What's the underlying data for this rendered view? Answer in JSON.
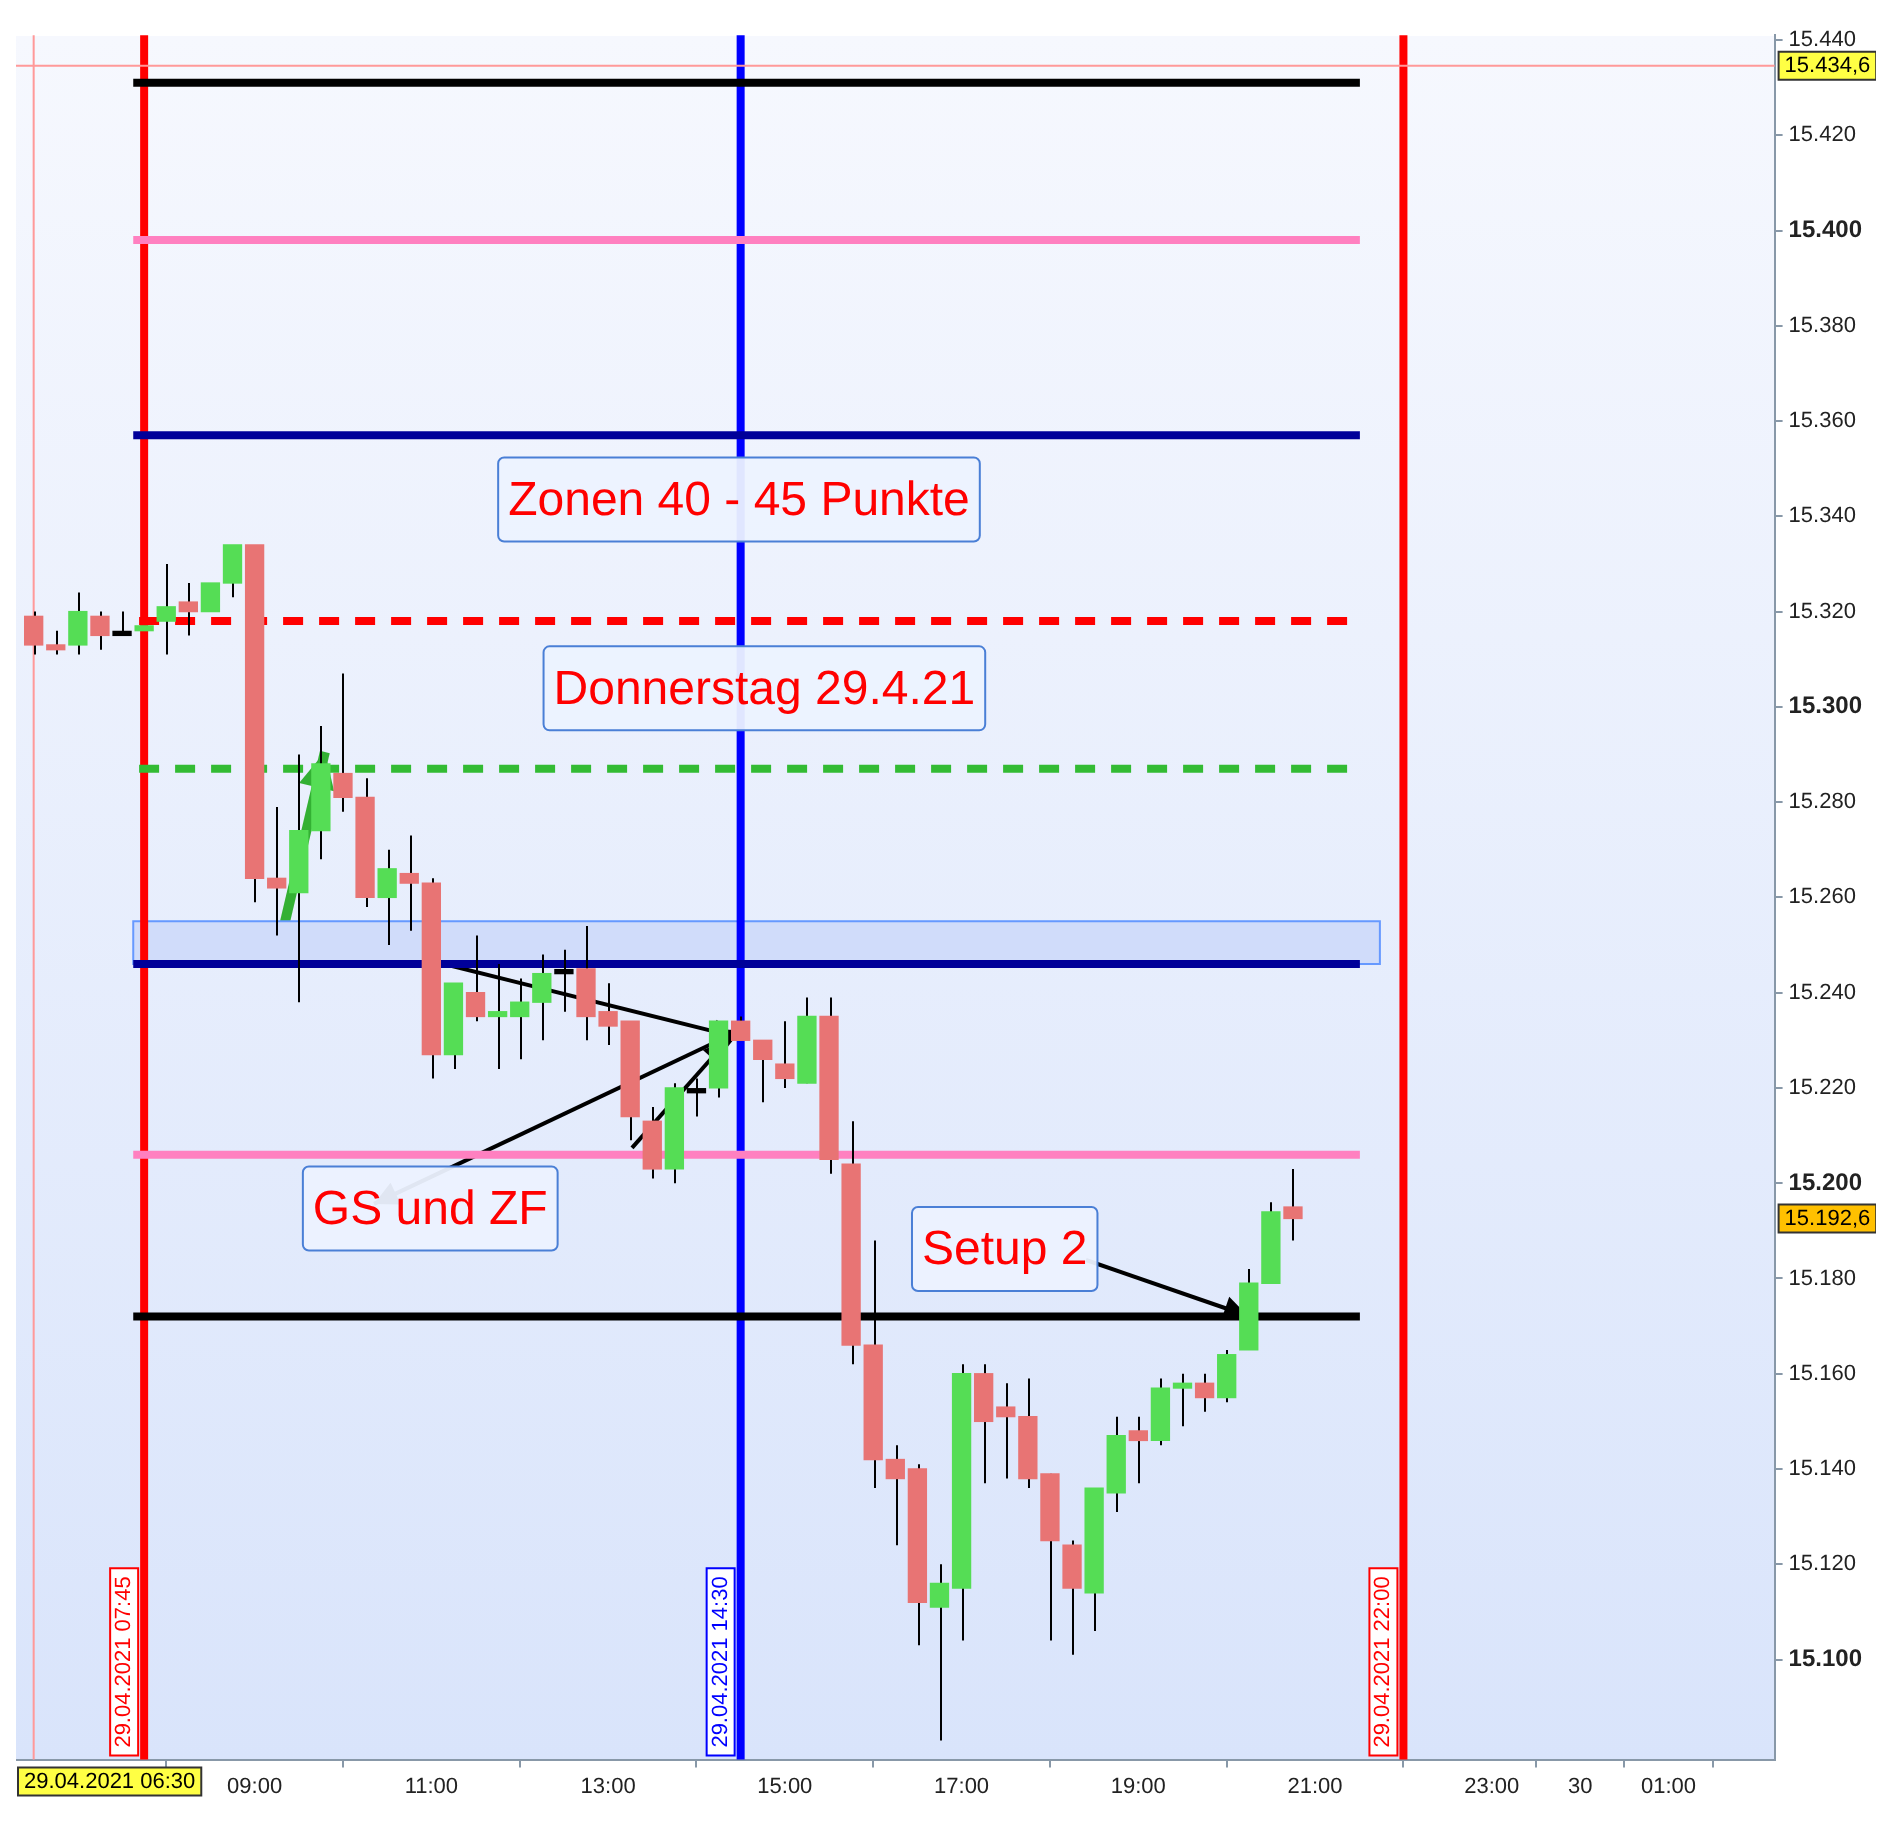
{
  "chart_data": {
    "type": "candlestick",
    "x": [
      "2021-04-29T06:30",
      "2021-04-29T06:45",
      "2021-04-29T07:00",
      "2021-04-29T07:15",
      "2021-04-29T07:30",
      "2021-04-29T07:45",
      "2021-04-29T08:00",
      "2021-04-29T08:15",
      "2021-04-29T08:30",
      "2021-04-29T08:45",
      "2021-04-29T09:00",
      "2021-04-29T09:15",
      "2021-04-29T09:30",
      "2021-04-29T09:45",
      "2021-04-29T10:00",
      "2021-04-29T10:15",
      "2021-04-29T10:30",
      "2021-04-29T10:45",
      "2021-04-29T11:00",
      "2021-04-29T11:15",
      "2021-04-29T11:30",
      "2021-04-29T11:45",
      "2021-04-29T12:00",
      "2021-04-29T12:15",
      "2021-04-29T12:30",
      "2021-04-29T12:45",
      "2021-04-29T13:00",
      "2021-04-29T13:15",
      "2021-04-29T13:30",
      "2021-04-29T13:45",
      "2021-04-29T14:00",
      "2021-04-29T14:15",
      "2021-04-29T14:30",
      "2021-04-29T14:45",
      "2021-04-29T15:00",
      "2021-04-29T15:15",
      "2021-04-29T15:30",
      "2021-04-29T15:45",
      "2021-04-29T16:00",
      "2021-04-29T16:15",
      "2021-04-29T16:30",
      "2021-04-29T16:45",
      "2021-04-29T17:00",
      "2021-04-29T17:15",
      "2021-04-29T17:30",
      "2021-04-29T17:45",
      "2021-04-29T18:00",
      "2021-04-29T18:15",
      "2021-04-29T18:30",
      "2021-04-29T18:45",
      "2021-04-29T19:00",
      "2021-04-29T19:15",
      "2021-04-29T19:30",
      "2021-04-29T19:45",
      "2021-04-29T20:00",
      "2021-04-29T20:15",
      "2021-04-29T20:30",
      "2021-04-29T20:45"
    ],
    "ohlc": [
      [
        15319,
        15320,
        15311,
        15313
      ],
      [
        15313,
        15316,
        15311,
        15312
      ],
      [
        15313,
        15324,
        15311,
        15320
      ],
      [
        15319,
        15320,
        15312,
        15315
      ],
      [
        15315,
        15320,
        15315,
        15315
      ],
      [
        15316,
        15317,
        15316,
        15317
      ],
      [
        15318,
        15330,
        15311,
        15321
      ],
      [
        15322,
        15326,
        15315,
        15320
      ],
      [
        15320,
        15326,
        15320,
        15326
      ],
      [
        15326,
        15334,
        15323,
        15334
      ],
      [
        15334,
        15334,
        15259,
        15264
      ],
      [
        15264,
        15279,
        15252,
        15262
      ],
      [
        15261,
        15290,
        15238,
        15274
      ],
      [
        15274,
        15296,
        15268,
        15288
      ],
      [
        15286,
        15307,
        15278,
        15281
      ],
      [
        15281,
        15285,
        15258,
        15260
      ],
      [
        15260,
        15270,
        15250,
        15266
      ],
      [
        15265,
        15273,
        15253,
        15263
      ],
      [
        15263,
        15264,
        15222,
        15227
      ],
      [
        15227,
        15242,
        15224,
        15242
      ],
      [
        15240,
        15252,
        15234,
        15235
      ],
      [
        15235,
        15246,
        15224,
        15236
      ],
      [
        15235,
        15243,
        15226,
        15238
      ],
      [
        15238,
        15248,
        15230,
        15244
      ],
      [
        15244,
        15249,
        15236,
        15244
      ],
      [
        15245,
        15254,
        15230,
        15235
      ],
      [
        15236,
        15242,
        15229,
        15233
      ],
      [
        15234,
        15234,
        15209,
        15214
      ],
      [
        15213,
        15216,
        15201,
        15203
      ],
      [
        15203,
        15221,
        15200,
        15220
      ],
      [
        15219,
        15222,
        15214,
        15219
      ],
      [
        15220,
        15234,
        15218,
        15234
      ],
      [
        15234,
        15235,
        15230,
        15230
      ],
      [
        15230,
        15230,
        15217,
        15226
      ],
      [
        15225,
        15234,
        15220,
        15222
      ],
      [
        15221,
        15239,
        15221,
        15235
      ],
      [
        15235,
        15239,
        15202,
        15205
      ],
      [
        15204,
        15213,
        15162,
        15166
      ],
      [
        15166,
        15188,
        15136,
        15142
      ],
      [
        15142,
        15145,
        15124,
        15138
      ],
      [
        15140,
        15141,
        15103,
        15112
      ],
      [
        15111,
        15120,
        15083,
        15116
      ],
      [
        15115,
        15162,
        15104,
        15160
      ],
      [
        15160,
        15162,
        15137,
        15150
      ],
      [
        15153,
        15158,
        15138,
        15151
      ],
      [
        15151,
        15159,
        15136,
        15138
      ],
      [
        15139,
        15139,
        15104,
        15125
      ],
      [
        15124,
        15125,
        15101,
        15115
      ],
      [
        15114,
        15136,
        15106,
        15136
      ],
      [
        15135,
        15151,
        15131,
        15147
      ],
      [
        15148,
        15151,
        15137,
        15146
      ],
      [
        15146,
        15159,
        15145,
        15157
      ],
      [
        15157,
        15160,
        15149,
        15158
      ],
      [
        15158,
        15160,
        15152,
        15155
      ],
      [
        15155,
        15165,
        15154,
        15164
      ],
      [
        15165,
        15182,
        15165,
        15179
      ],
      [
        15179,
        15196,
        15179,
        15194
      ],
      [
        15195,
        15203,
        15188,
        15192.6
      ]
    ],
    "colors": [
      "#e87474",
      "#e87474",
      "#55dd55",
      "#e87474",
      "#000000",
      "#55dd55",
      "#55dd55",
      "#e87474",
      "#55dd55",
      "#55dd55",
      "#e87474",
      "#e87474",
      "#55dd55",
      "#55dd55",
      "#e87474",
      "#e87474",
      "#55dd55",
      "#e87474",
      "#e87474",
      "#55dd55",
      "#e87474",
      "#55dd55",
      "#55dd55",
      "#55dd55",
      "#000000",
      "#e87474",
      "#e87474",
      "#e87474",
      "#e87474",
      "#55dd55",
      "#000000",
      "#55dd55",
      "#e87474",
      "#e87474",
      "#e87474",
      "#55dd55",
      "#e87474",
      "#e87474",
      "#e87474",
      "#e87474",
      "#e87474",
      "#55dd55",
      "#55dd55",
      "#e87474",
      "#e87474",
      "#e87474",
      "#e87474",
      "#e87474",
      "#55dd55",
      "#55dd55",
      "#e87474",
      "#55dd55",
      "#55dd55",
      "#e87474",
      "#55dd55",
      "#55dd55",
      "#55dd55",
      "#e87474"
    ],
    "xlim": [
      "2021-04-29T06:18",
      "2021-04-30T02:12"
    ],
    "xticks": [
      {
        "value": "2021-04-29T09:00",
        "label": "09:00"
      },
      {
        "value": "2021-04-29T11:00",
        "label": "11:00"
      },
      {
        "value": "2021-04-29T13:00",
        "label": "13:00"
      },
      {
        "value": "2021-04-29T15:00",
        "label": "15:00"
      },
      {
        "value": "2021-04-29T17:00",
        "label": "17:00"
      },
      {
        "value": "2021-04-29T19:00",
        "label": "19:00"
      },
      {
        "value": "2021-04-29T21:00",
        "label": "21:00"
      },
      {
        "value": "2021-04-29T23:00",
        "label": "23:00"
      },
      {
        "value": "2021-04-30T00:00",
        "label": "30"
      },
      {
        "value": "2021-04-30T01:00",
        "label": "01:00"
      }
    ],
    "ylim": [
      15079,
      15441
    ],
    "yticks": [
      {
        "value": 15100,
        "label": "15.100"
      },
      {
        "value": 15120,
        "label": "15.120"
      },
      {
        "value": 15140,
        "label": "15.140"
      },
      {
        "value": 15160,
        "label": "15.160"
      },
      {
        "value": 15180,
        "label": "15.180"
      },
      {
        "value": 15200,
        "label": "15.200"
      },
      {
        "value": 15220,
        "label": "15.220"
      },
      {
        "value": 15240,
        "label": "15.240"
      },
      {
        "value": 15260,
        "label": "15.260"
      },
      {
        "value": 15280,
        "label": "15.280"
      },
      {
        "value": 15300,
        "label": "15.300"
      },
      {
        "value": 15320,
        "label": "15.320"
      },
      {
        "value": 15340,
        "label": "15.340"
      },
      {
        "value": 15360,
        "label": "15.360"
      },
      {
        "value": 15380,
        "label": "15.380"
      },
      {
        "value": 15400,
        "label": "15.400"
      },
      {
        "value": 15420,
        "label": "15.420"
      },
      {
        "value": 15440,
        "label": "15.440"
      }
    ],
    "ref_lines": [
      {
        "axis": "x",
        "value": "2021-04-29T06:30",
        "label": "29.04.2021 06:30",
        "color": "#ff9999"
      },
      {
        "axis": "x",
        "value": "2021-04-29T07:45",
        "label": "29.04.2021 07:45",
        "color": "#ff0000"
      },
      {
        "axis": "x",
        "value": "2021-04-29T14:30",
        "label": "29.04.2021 14:30",
        "color": "#0000ff"
      },
      {
        "axis": "x",
        "value": "2021-04-29T22:00",
        "label": "29.04.2021 22:00",
        "color": "#ff0000"
      },
      {
        "axis": "y",
        "value": 15434.6,
        "label": "15.434,6",
        "color": "#ff9999"
      },
      {
        "axis": "y",
        "value": 15431,
        "color": "#000000"
      },
      {
        "axis": "y",
        "value": 15398,
        "color": "#ff80c0"
      },
      {
        "axis": "y",
        "value": 15357,
        "color": "#000099"
      },
      {
        "axis": "y",
        "value": 15318,
        "color": "#ff0000",
        "line_style": "dashed"
      },
      {
        "axis": "y",
        "value": 15287,
        "color": "#33bb33",
        "line_style": "dashed"
      },
      {
        "axis": "y",
        "value": 15246,
        "color": "#000099"
      },
      {
        "axis": "y",
        "value": 15206,
        "color": "#ff80c0"
      },
      {
        "axis": "y",
        "value": 15172,
        "color": "#000000"
      }
    ],
    "bands": [
      {
        "axis": "y",
        "from": 15246,
        "to": 15255,
        "color": "#d0dcfa"
      }
    ],
    "annotations": [
      "Zonen 40 - 45 Punkte",
      "Donnerstag 29.4.21",
      {
        "text": "GS und ZF",
        "x": "2021-04-29T14:30",
        "y": 15232
      },
      {
        "text": "Setup 2",
        "x": "2021-04-29T20:15",
        "y": 15172
      },
      "15.192,6"
    ],
    "grid": false,
    "legend": false
  }
}
